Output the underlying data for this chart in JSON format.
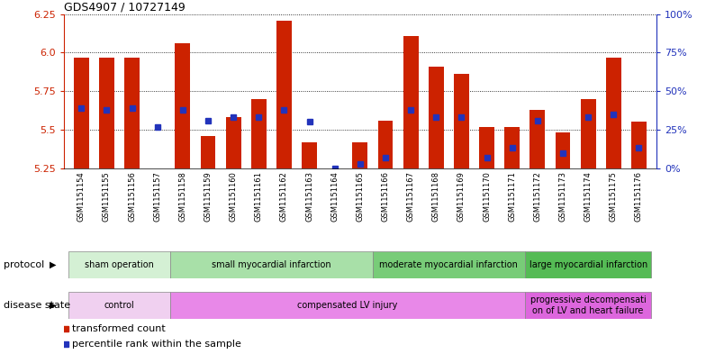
{
  "title": "GDS4907 / 10727149",
  "samples": [
    "GSM1151154",
    "GSM1151155",
    "GSM1151156",
    "GSM1151157",
    "GSM1151158",
    "GSM1151159",
    "GSM1151160",
    "GSM1151161",
    "GSM1151162",
    "GSM1151163",
    "GSM1151164",
    "GSM1151165",
    "GSM1151166",
    "GSM1151167",
    "GSM1151168",
    "GSM1151169",
    "GSM1151170",
    "GSM1151171",
    "GSM1151172",
    "GSM1151173",
    "GSM1151174",
    "GSM1151175",
    "GSM1151176"
  ],
  "bar_values": [
    5.97,
    5.97,
    5.97,
    5.25,
    6.06,
    5.46,
    5.58,
    5.7,
    6.21,
    5.42,
    5.25,
    5.42,
    5.56,
    6.11,
    5.91,
    5.86,
    5.52,
    5.52,
    5.63,
    5.48,
    5.7,
    5.97,
    5.55
  ],
  "blue_values": [
    5.64,
    5.63,
    5.64,
    5.52,
    5.63,
    5.56,
    5.58,
    5.58,
    5.63,
    5.55,
    5.25,
    5.28,
    5.32,
    5.63,
    5.58,
    5.58,
    5.32,
    5.38,
    5.56,
    5.35,
    5.58,
    5.6,
    5.38
  ],
  "ylim": [
    5.25,
    6.25
  ],
  "yticks_left": [
    5.25,
    5.5,
    5.75,
    6.0,
    6.25
  ],
  "yticks_right_labels": [
    "0%",
    "25%",
    "50%",
    "75%",
    "100%"
  ],
  "yticks_right_vals": [
    0,
    25,
    50,
    75,
    100
  ],
  "bar_color": "#cc2200",
  "blue_color": "#2233bb",
  "bg_color": "#ffffff",
  "plot_bg": "#ffffff",
  "protocol_groups": [
    {
      "label": "sham operation",
      "start": 0,
      "end": 4,
      "color": "#d4f0d4"
    },
    {
      "label": "small myocardial infarction",
      "start": 4,
      "end": 12,
      "color": "#a8e0a8"
    },
    {
      "label": "moderate myocardial infarction",
      "start": 12,
      "end": 18,
      "color": "#78cc78"
    },
    {
      "label": "large myocardial infarction",
      "start": 18,
      "end": 23,
      "color": "#55bb55"
    }
  ],
  "disease_groups": [
    {
      "label": "control",
      "start": 0,
      "end": 4,
      "color": "#f0d0f0"
    },
    {
      "label": "compensated LV injury",
      "start": 4,
      "end": 18,
      "color": "#e888e8"
    },
    {
      "label": "progressive decompensati\non of LV and heart failure",
      "start": 18,
      "end": 23,
      "color": "#dd66dd"
    }
  ],
  "xlabel_bg": "#cccccc",
  "protocol_label": "protocol",
  "disease_label": "disease state",
  "legend_items": [
    {
      "label": "transformed count",
      "color": "#cc2200"
    },
    {
      "label": "percentile rank within the sample",
      "color": "#2233bb"
    }
  ]
}
